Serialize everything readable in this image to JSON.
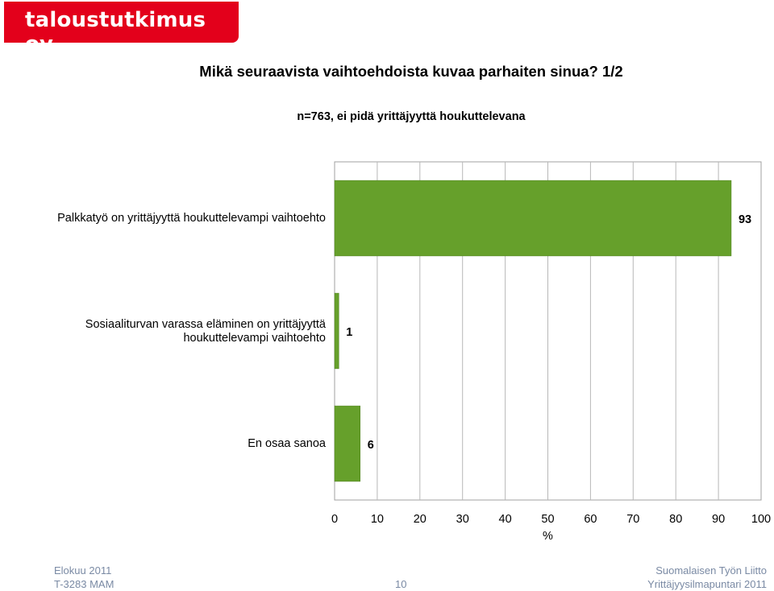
{
  "logo": {
    "text": "taloustutkimus oy"
  },
  "title": "Mikä seuraavista vaihtoehdoista kuvaa parhaiten sinua? 1/2",
  "subtitle": "n=763, ei pidä yrittäjyyttä houkuttelevana",
  "chart_data": {
    "type": "bar",
    "orientation": "horizontal",
    "categories": [
      "Palkkatyö on yrittäjyyttä houkuttelevampi vaihtoehto",
      "Sosiaaliturvan varassa eläminen on yrittäjyyttä houkuttelevampi vaihtoehto",
      "En osaa sanoa"
    ],
    "category_lines": [
      [
        "Palkkatyö on yrittäjyyttä houkuttelevampi vaihtoehto"
      ],
      [
        "Sosiaaliturvan varassa eläminen on yrittäjyyttä",
        "houkuttelevampi vaihtoehto"
      ],
      [
        "En osaa sanoa"
      ]
    ],
    "values": [
      93,
      1,
      6
    ],
    "data_labels": [
      "93",
      "1",
      "6"
    ],
    "xlabel": "%",
    "xlim": [
      0,
      100
    ],
    "xticks": [
      "0",
      "10",
      "20",
      "30",
      "40",
      "50",
      "60",
      "70",
      "80",
      "90",
      "100"
    ],
    "grid": true,
    "bar_color": "#66a02b"
  },
  "footer": {
    "left_line1": "Elokuu 2011",
    "left_line2": "T-3283 MAM",
    "page": "10",
    "right_line1": "Suomalaisen Työn Liitto",
    "right_line2": "Yrittäjyysilmapuntari 2011"
  }
}
